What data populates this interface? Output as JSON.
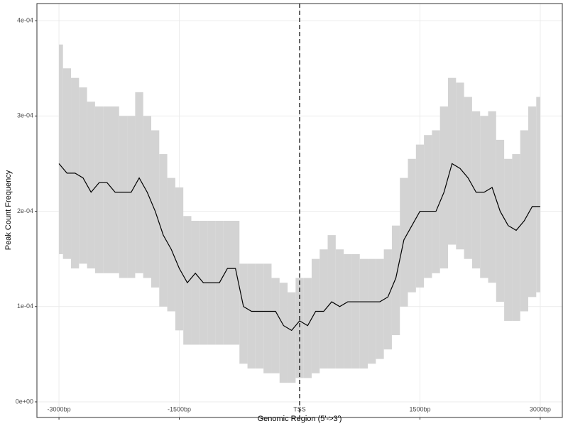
{
  "chart_data": {
    "type": "line",
    "x_label": "Genomic Region (5'->3')",
    "y_label": "Peak Count Frequency",
    "x": [
      -3000,
      -2900,
      -2800,
      -2700,
      -2600,
      -2500,
      -2400,
      -2300,
      -2200,
      -2100,
      -2000,
      -1900,
      -1800,
      -1700,
      -1600,
      -1500,
      -1400,
      -1300,
      -1200,
      -1100,
      -1000,
      -900,
      -800,
      -700,
      -600,
      -500,
      -400,
      -300,
      -200,
      -100,
      0,
      100,
      200,
      300,
      400,
      500,
      600,
      700,
      800,
      900,
      1000,
      1100,
      1200,
      1300,
      1400,
      1500,
      1600,
      1700,
      1800,
      1900,
      2000,
      2100,
      2200,
      2300,
      2400,
      2500,
      2600,
      2700,
      2800,
      2900,
      3000
    ],
    "values": [
      0.00025,
      0.00024,
      0.00024,
      0.000235,
      0.00022,
      0.00023,
      0.00023,
      0.00022,
      0.00022,
      0.00022,
      0.000235,
      0.00022,
      0.0002,
      0.000175,
      0.00016,
      0.00014,
      0.000125,
      0.000135,
      0.000125,
      0.000125,
      0.000125,
      0.00014,
      0.00014,
      0.0001,
      9.5e-05,
      9.5e-05,
      9.5e-05,
      9.5e-05,
      8e-05,
      7.5e-05,
      8.5e-05,
      8e-05,
      9.5e-05,
      9.5e-05,
      0.000105,
      0.0001,
      0.000105,
      0.000105,
      0.000105,
      0.000105,
      0.000105,
      0.00011,
      0.00013,
      0.00017,
      0.000185,
      0.0002,
      0.0002,
      0.0002,
      0.00022,
      0.00025,
      0.000245,
      0.000235,
      0.00022,
      0.00022,
      0.000225,
      0.0002,
      0.000185,
      0.00018,
      0.00019,
      0.000205,
      0.000205
    ],
    "lower": [
      0.000155,
      0.00015,
      0.00014,
      0.000145,
      0.00014,
      0.000135,
      0.000135,
      0.000135,
      0.00013,
      0.00013,
      0.000135,
      0.00013,
      0.00012,
      0.0001,
      9.5e-05,
      7.5e-05,
      6e-05,
      6e-05,
      6e-05,
      6e-05,
      6e-05,
      6e-05,
      6e-05,
      4e-05,
      3.5e-05,
      3.5e-05,
      3e-05,
      3e-05,
      2e-05,
      2e-05,
      2.5e-05,
      2.5e-05,
      3e-05,
      3.5e-05,
      3.5e-05,
      3.5e-05,
      3.5e-05,
      3.5e-05,
      3.5e-05,
      4e-05,
      4.5e-05,
      5.5e-05,
      7e-05,
      0.0001,
      0.000115,
      0.00012,
      0.00013,
      0.000135,
      0.00014,
      0.000165,
      0.00016,
      0.00015,
      0.00014,
      0.00013,
      0.000125,
      0.000105,
      8.5e-05,
      8.5e-05,
      9.5e-05,
      0.00011,
      0.000115
    ],
    "upper": [
      0.000375,
      0.00035,
      0.00034,
      0.00033,
      0.000315,
      0.00031,
      0.00031,
      0.00031,
      0.0003,
      0.0003,
      0.000325,
      0.0003,
      0.000285,
      0.00026,
      0.000235,
      0.000225,
      0.000195,
      0.00019,
      0.00019,
      0.00019,
      0.00019,
      0.00019,
      0.00019,
      0.000145,
      0.000145,
      0.000145,
      0.000145,
      0.00013,
      0.000125,
      0.000115,
      0.00013,
      0.00013,
      0.00015,
      0.00016,
      0.000175,
      0.00016,
      0.000155,
      0.000155,
      0.00015,
      0.00015,
      0.00015,
      0.00016,
      0.000185,
      0.000235,
      0.000255,
      0.00027,
      0.00028,
      0.000285,
      0.00031,
      0.00034,
      0.000335,
      0.00032,
      0.000305,
      0.0003,
      0.000305,
      0.000275,
      0.000255,
      0.00026,
      0.000285,
      0.00031,
      0.00032
    ],
    "color": "#000000",
    "band_color": "#d3d3d3",
    "vline": 0,
    "xlim": [
      -3275,
      3275
    ],
    "ylim": [
      -1.64e-05,
      0.000418
    ],
    "xticks": [
      {
        "value": -3000,
        "label": "-3000bp"
      },
      {
        "value": -1500,
        "label": "-1500bp"
      },
      {
        "value": 0,
        "label": "TSS"
      },
      {
        "value": 1500,
        "label": "1500bp"
      },
      {
        "value": 3000,
        "label": "3000bp"
      }
    ],
    "yticks": [
      {
        "value": 0,
        "label": "0e+00"
      },
      {
        "value": 0.0001,
        "label": "1e-04"
      },
      {
        "value": 0.0002,
        "label": "2e-04"
      },
      {
        "value": 0.0003,
        "label": "3e-04"
      },
      {
        "value": 0.0004,
        "label": "4e-04"
      }
    ],
    "grid": true
  }
}
